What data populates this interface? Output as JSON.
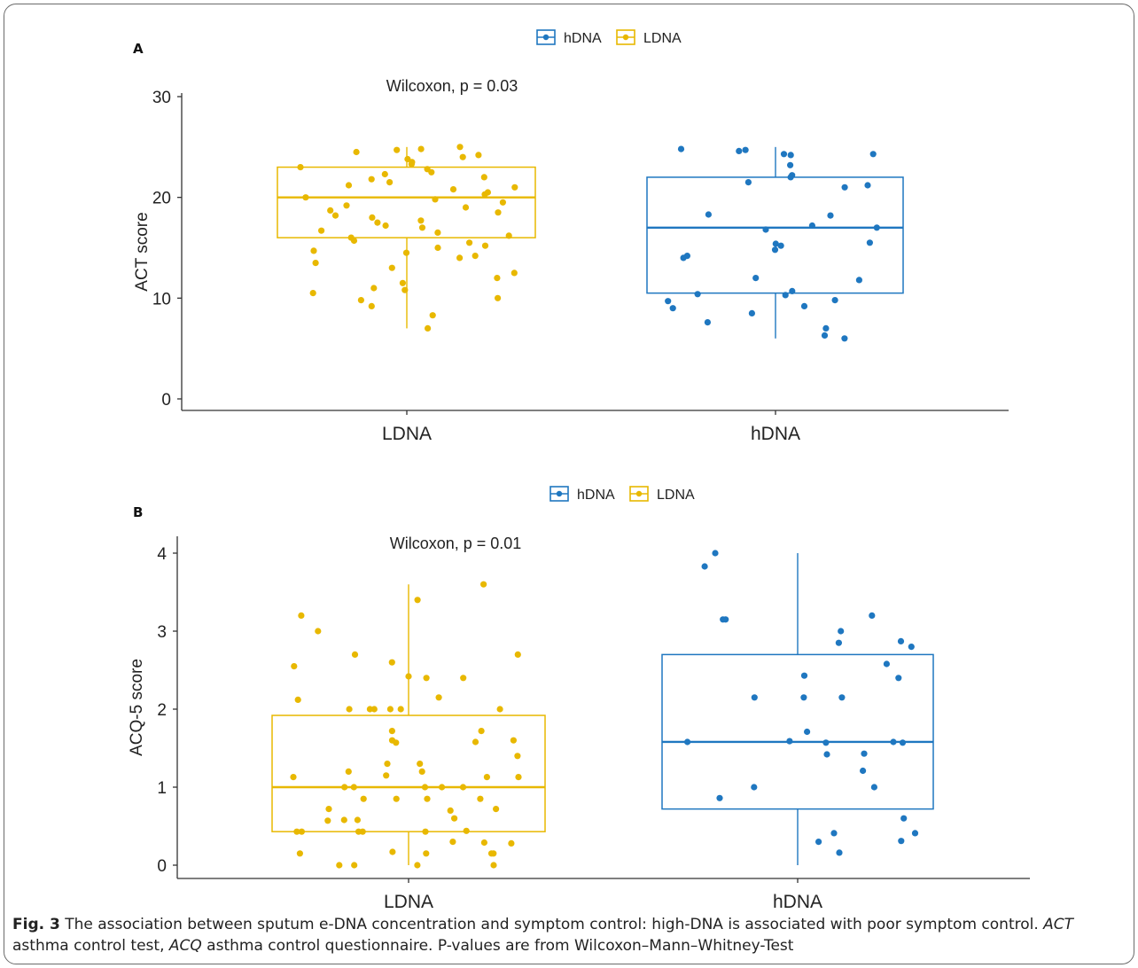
{
  "figure": {
    "caption_label": "Fig. 3",
    "caption_text_1": "  The association between sputum e-DNA concentration and symptom control: high-DNA is associated with poor symptom control. ",
    "caption_abbr_1": "ACT",
    "caption_text_2": " asthma control test, ",
    "caption_abbr_2": "ACQ",
    "caption_text_3": " asthma control questionnaire. P-values are from Wilcoxon–Mann–Whitney-Test"
  },
  "colors": {
    "hDNA": "#1f77c0",
    "LDNA": "#e8b800",
    "axis": "#333333"
  },
  "chart_data": [
    {
      "type": "box",
      "panel_label": "A",
      "ylabel": "ACT score",
      "ylim": [
        0,
        30
      ],
      "yticks": [
        0,
        10,
        20,
        30
      ],
      "categories": [
        "LDNA",
        "hDNA"
      ],
      "legend": [
        "hDNA",
        "LDNA"
      ],
      "legend_position": "top",
      "annotation": "Wilcoxon, p = 0.03",
      "series": [
        {
          "name": "LDNA",
          "box": {
            "whisker_low": 7,
            "q1": 16,
            "median": 20,
            "q3": 23,
            "whisker_high": 25
          },
          "points": [
            25,
            24.8,
            24.7,
            24.5,
            24.2,
            24.0,
            23.8,
            23.5,
            23.3,
            23.0,
            22.8,
            22.5,
            22.3,
            22.0,
            21.8,
            21.5,
            21.2,
            21.0,
            20.8,
            20.5,
            20.3,
            20.0,
            19.8,
            19.5,
            19.2,
            19.0,
            18.7,
            18.5,
            18.2,
            18.0,
            17.7,
            17.5,
            17.2,
            17.0,
            16.7,
            16.5,
            16.2,
            16.0,
            15.7,
            15.5,
            15.2,
            15.0,
            14.7,
            14.5,
            14.2,
            14.0,
            13.5,
            13.0,
            12.5,
            12.0,
            11.5,
            11.0,
            10.8,
            10.5,
            10.0,
            9.8,
            9.2,
            8.3,
            7.0
          ]
        },
        {
          "name": "hDNA",
          "box": {
            "whisker_low": 6,
            "q1": 10.5,
            "median": 17,
            "q3": 22,
            "whisker_high": 25
          },
          "points": [
            24.8,
            24.7,
            24.6,
            24.3,
            24.3,
            24.2,
            23.2,
            22.2,
            22.0,
            21.5,
            21.2,
            21.0,
            18.3,
            18.2,
            17.2,
            17.0,
            16.8,
            15.5,
            15.4,
            15.2,
            14.8,
            14.2,
            14.0,
            12.0,
            11.8,
            10.7,
            10.4,
            10.3,
            9.8,
            9.7,
            9.2,
            9.0,
            8.5,
            7.6,
            7.0,
            6.3,
            6.0
          ]
        }
      ]
    },
    {
      "type": "box",
      "panel_label": "B",
      "ylabel": "ACQ-5 score",
      "ylim": [
        0,
        4
      ],
      "yticks": [
        0,
        1,
        2,
        3,
        4
      ],
      "categories": [
        "LDNA",
        "hDNA"
      ],
      "legend": [
        "hDNA",
        "LDNA"
      ],
      "legend_position": "top",
      "annotation": "Wilcoxon, p = 0.01",
      "series": [
        {
          "name": "LDNA",
          "box": {
            "whisker_low": 0,
            "q1": 0.43,
            "median": 1.0,
            "q3": 1.92,
            "whisker_high": 3.6
          },
          "points": [
            3.6,
            3.4,
            3.2,
            3.0,
            2.7,
            2.7,
            2.6,
            2.55,
            2.42,
            2.4,
            2.4,
            2.15,
            2.12,
            2.0,
            2.0,
            2.0,
            2.0,
            2.0,
            2.0,
            1.72,
            1.72,
            1.6,
            1.6,
            1.58,
            1.57,
            1.4,
            1.3,
            1.3,
            1.2,
            1.2,
            1.15,
            1.13,
            1.13,
            1.13,
            1.0,
            1.0,
            1.0,
            1.0,
            1.0,
            0.85,
            0.85,
            0.85,
            0.85,
            0.72,
            0.72,
            0.7,
            0.6,
            0.58,
            0.58,
            0.57,
            0.44,
            0.43,
            0.43,
            0.43,
            0.43,
            0.43,
            0.3,
            0.29,
            0.28,
            0.17,
            0.15,
            0.15,
            0.15,
            0.15,
            0.0,
            0.0,
            0.0,
            0.0
          ]
        },
        {
          "name": "hDNA",
          "box": {
            "whisker_low": 0,
            "q1": 0.72,
            "median": 1.58,
            "q3": 2.7,
            "whisker_high": 4.0
          },
          "points": [
            4.0,
            3.83,
            3.2,
            3.15,
            3.15,
            3.0,
            2.87,
            2.85,
            2.8,
            2.58,
            2.43,
            2.4,
            2.15,
            2.15,
            2.15,
            1.71,
            1.59,
            1.58,
            1.58,
            1.57,
            1.57,
            1.43,
            1.42,
            1.21,
            1.0,
            1.0,
            0.86,
            0.6,
            0.41,
            0.41,
            0.31,
            0.3,
            0.16
          ]
        }
      ]
    }
  ]
}
